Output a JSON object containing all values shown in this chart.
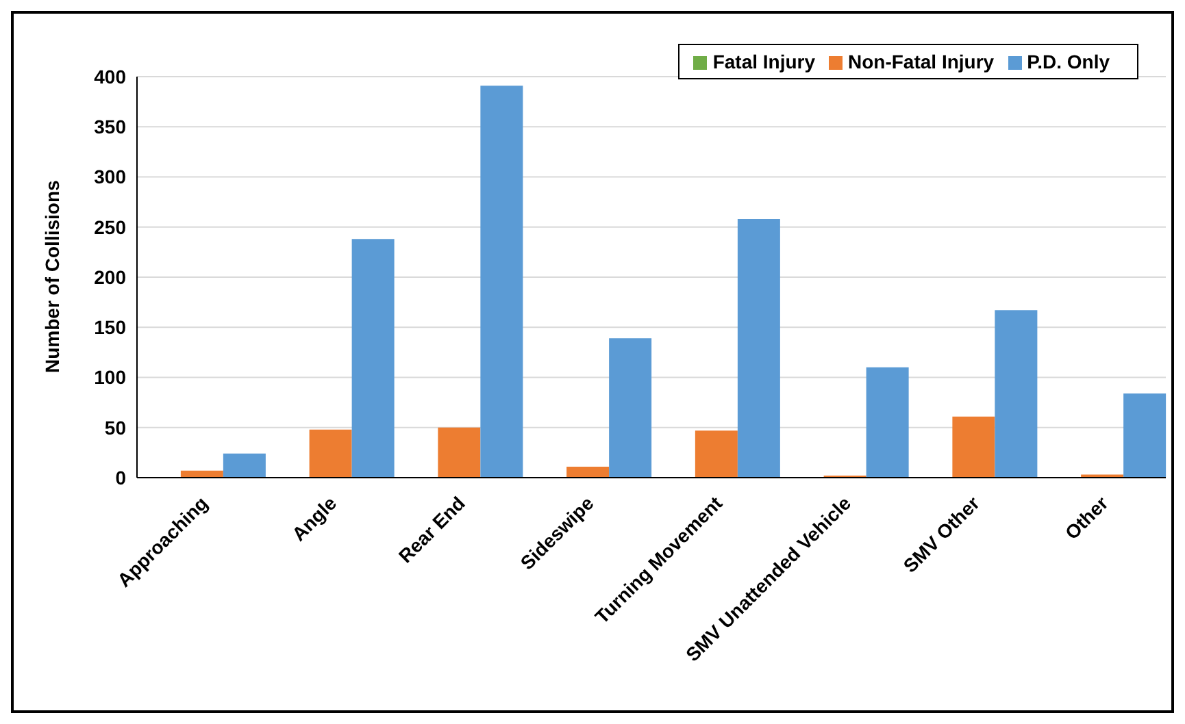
{
  "chart_data": {
    "type": "bar",
    "ylabel": "Number of Collisions",
    "categories": [
      "Approaching",
      "Angle",
      "Rear End",
      "Sideswipe",
      "Turning Movement",
      "SMV Unattended Vehicle",
      "SMV Other",
      "Other"
    ],
    "series": [
      {
        "name": "Fatal Injury",
        "color": "#70ad47",
        "values": [
          0,
          0,
          0,
          0,
          0,
          0,
          0,
          0
        ]
      },
      {
        "name": "Non-Fatal Injury",
        "color": "#ed7d31",
        "values": [
          7,
          48,
          50,
          11,
          47,
          2,
          61,
          3
        ]
      },
      {
        "name": "P.D. Only",
        "color": "#5b9bd5",
        "values": [
          24,
          238,
          391,
          139,
          258,
          110,
          167,
          84
        ]
      }
    ],
    "ylim": [
      0,
      400
    ],
    "yticks": [
      0,
      50,
      100,
      150,
      200,
      250,
      300,
      350,
      400
    ],
    "grid": "y",
    "legend": "top right"
  }
}
